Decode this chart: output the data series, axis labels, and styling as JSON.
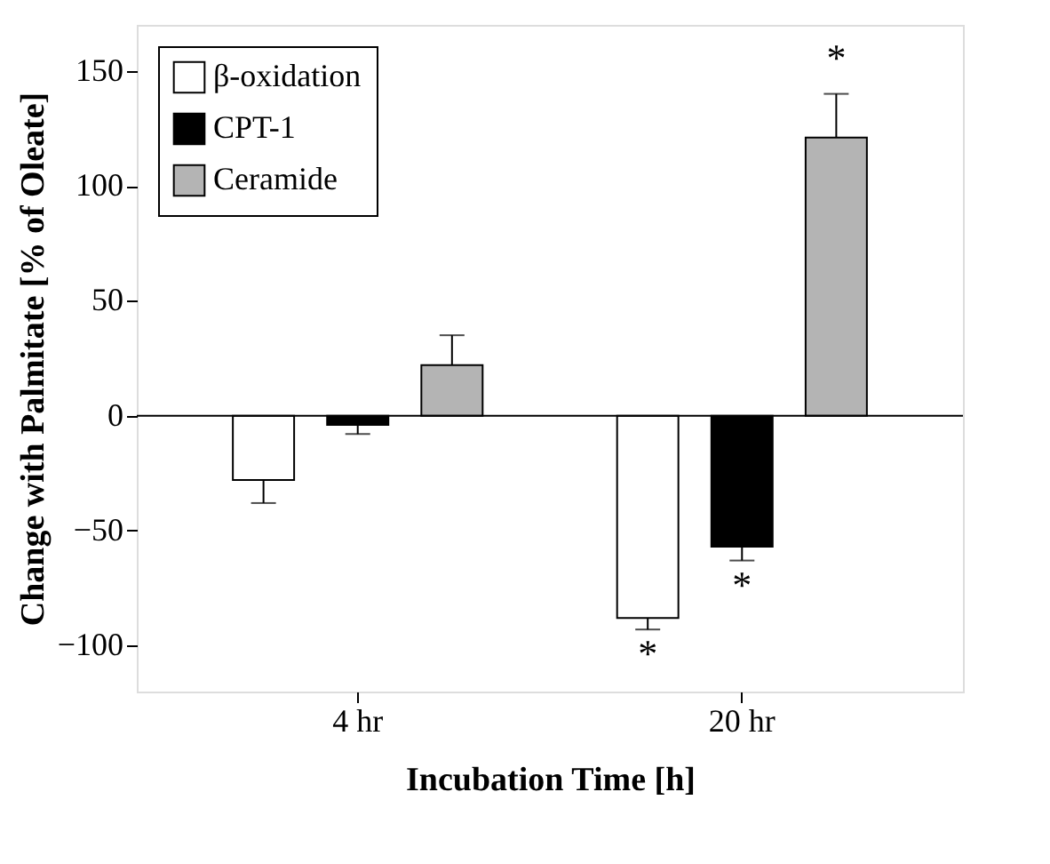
{
  "chart_data": {
    "type": "bar",
    "xlabel": "Incubation Time [h]",
    "ylabel": "Change with Palmitate [% of Oleate]",
    "categories": [
      "4 hr",
      "20 hr"
    ],
    "series": [
      {
        "name": "β-oxidation",
        "color": "#ffffff",
        "values": [
          -28,
          -88
        ],
        "errors": [
          [
            -38,
            -28
          ],
          [
            -93,
            -88
          ]
        ],
        "value_labels": [
          null,
          "*"
        ]
      },
      {
        "name": "CPT-1",
        "color": "#000000",
        "values": [
          -4,
          -57
        ],
        "errors": [
          [
            -8,
            -4
          ],
          [
            -63,
            -57
          ]
        ],
        "value_labels": [
          null,
          "*"
        ]
      },
      {
        "name": "Ceramide",
        "color": "#b4b4b4",
        "values": [
          22,
          121
        ],
        "errors": [
          [
            22,
            35
          ],
          [
            121,
            140
          ]
        ],
        "value_labels": [
          null,
          "*"
        ]
      }
    ],
    "ylim": [
      -120,
      170
    ],
    "yticks": [
      -100,
      -50,
      0,
      50,
      100,
      150
    ],
    "ref_lines": [
      {
        "axis": "y",
        "value": 0
      }
    ],
    "grid": false,
    "legend": "top left"
  }
}
